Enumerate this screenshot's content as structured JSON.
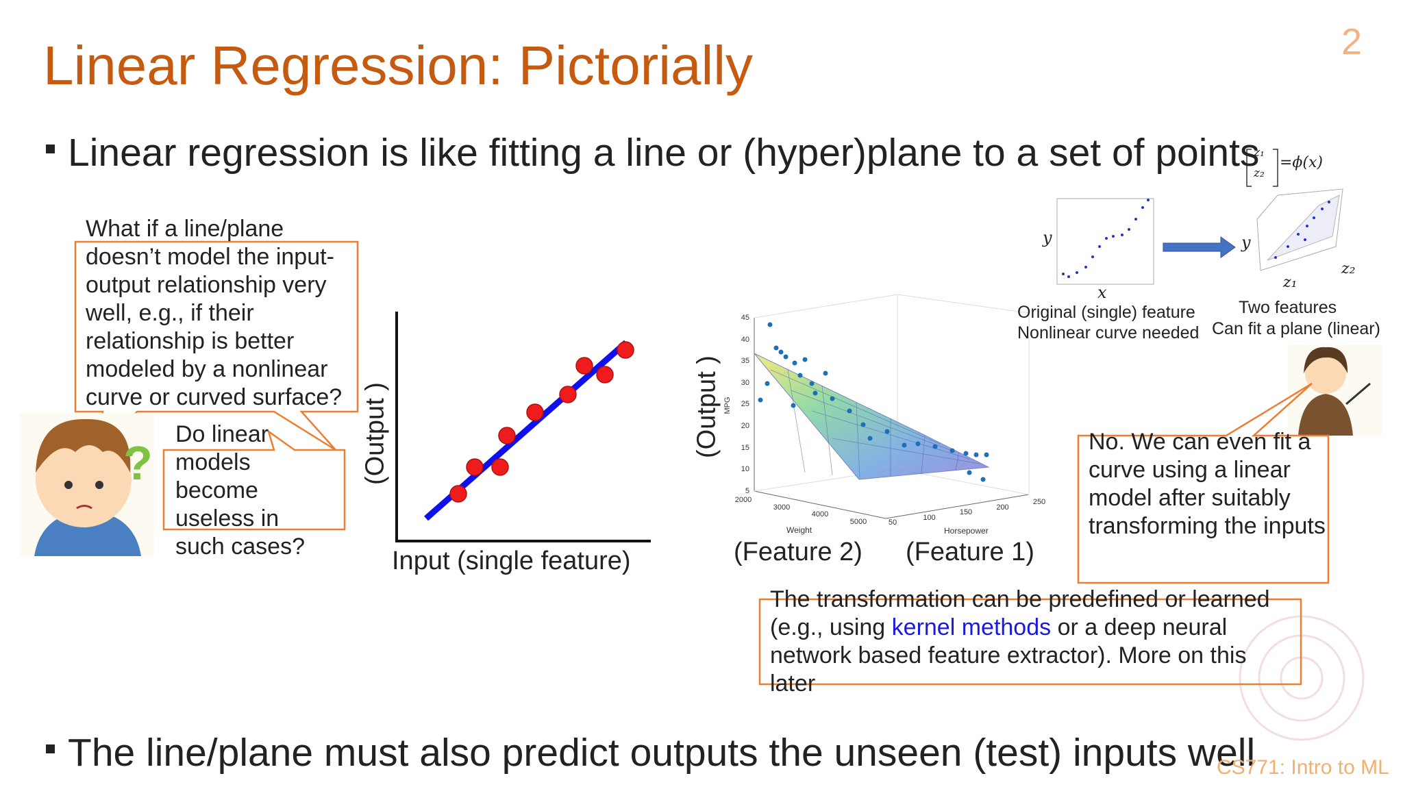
{
  "slide": {
    "page_number": "2",
    "title": "Linear Regression: Pictorially",
    "bullets": [
      "Linear regression is like fitting a line or (hyper)plane to a set of points",
      "The line/plane must also predict outputs the unseen (test) inputs well"
    ],
    "callouts": {
      "student_question": "What if a line/plane doesn’t model the input-output relationship very well, e.g., if their relationship is better modeled by a nonlinear curve or curved surface?",
      "student_followup": "Do linear models become useless in such cases?",
      "teacher_answer": "No. We can even fit a curve using a linear model after suitably transforming the inputs",
      "transformation_note": [
        "The transformation  can be predefined or learned (e.g., using ",
        "kernel methods",
        " or a deep neural network based feature extractor). More on this later"
      ]
    },
    "figure_1d": {
      "y_label": "(Output )",
      "x_label": "Input  (single feature)"
    },
    "figure_3d": {
      "y_label": "(Output )",
      "z_axis_label": "MPG",
      "z_ticks": [
        45,
        40,
        35,
        30,
        25,
        20,
        15,
        10,
        5
      ],
      "weight_ticks": [
        2000,
        3000,
        4000,
        5000
      ],
      "horsepower_ticks": [
        50,
        100,
        150,
        200,
        250
      ],
      "weight_label": "Weight",
      "horsepower_label": "Horsepower",
      "feature_2": "(Feature 2)",
      "feature_1": "(Feature 1)"
    },
    "feature_map": {
      "formula": [
        "z₁",
        "z₂",
        "=ϕ(x)"
      ],
      "left_y": "y",
      "left_x": "x",
      "right_y": "y",
      "right_z1": "z₁",
      "right_z2": "z₂",
      "left_caption": [
        "Original (single) feature",
        "Nonlinear curve needed"
      ],
      "right_caption": [
        "Two features",
        "Can fit a plane (linear)"
      ]
    },
    "footer": "CS771: Intro to ML"
  }
}
